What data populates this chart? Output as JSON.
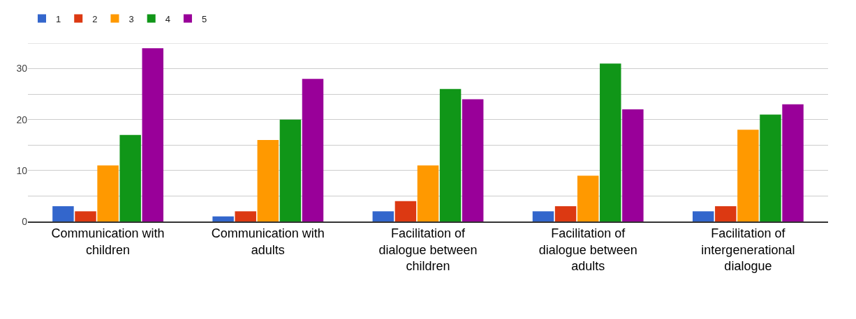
{
  "chart_data": {
    "type": "bar",
    "categories": [
      "Communication with children",
      "Communication with adults",
      "Facilitation of dialogue between children",
      "Facilitation of dialogue between adults",
      "Facilitation of intergenerational dialogue"
    ],
    "series": [
      {
        "name": "1",
        "color": "#3366cc",
        "values": [
          3,
          1,
          2,
          2,
          2
        ]
      },
      {
        "name": "2",
        "color": "#dc3912",
        "values": [
          2,
          2,
          4,
          3,
          3
        ]
      },
      {
        "name": "3",
        "color": "#ff9900",
        "values": [
          11,
          16,
          11,
          9,
          18
        ]
      },
      {
        "name": "4",
        "color": "#109618",
        "values": [
          17,
          20,
          26,
          31,
          21
        ]
      },
      {
        "name": "5",
        "color": "#990099",
        "values": [
          34,
          28,
          24,
          22,
          23
        ]
      }
    ],
    "ylim": [
      0,
      35
    ],
    "yticks": [
      0,
      {
        "value": 5,
        "label": null
      },
      10,
      {
        "value": 15,
        "label": null
      },
      20,
      {
        "value": 25,
        "label": null
      },
      30
    ],
    "grid": "y",
    "legend": "top left"
  }
}
